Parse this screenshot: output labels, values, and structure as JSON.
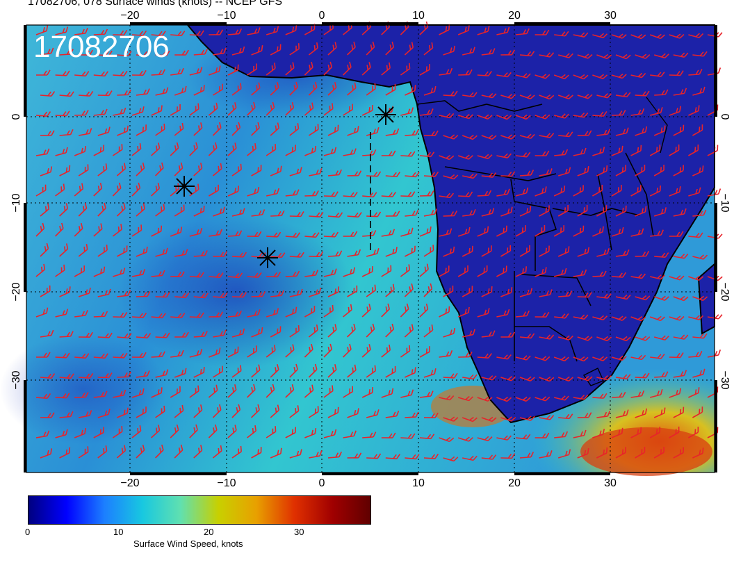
{
  "page": {
    "title": "17082706, 078 Surface winds (knots) -- NCEP GFS",
    "stamp": "17082706"
  },
  "map": {
    "lon_labels": [
      "−20",
      "−10",
      "0",
      "10",
      "20",
      "30"
    ],
    "lat_labels": [
      "0",
      "−10",
      "−20",
      "−30"
    ],
    "colors": {
      "ocean_dark": "#1c2fb0",
      "ocean_light": "#2ec8d8",
      "land": "#1a1fa0",
      "barb": "#e8232a",
      "frame": "#000000"
    }
  },
  "colorbar": {
    "label": "Surface Wind Speed, knots",
    "ticks": [
      "0",
      "10",
      "20",
      "30"
    ],
    "tick_values": [
      0,
      10,
      20,
      30
    ],
    "range": [
      0,
      38
    ],
    "stops": [
      "#00007f",
      "#0000ff",
      "#1c7fff",
      "#18c8e0",
      "#60e0b0",
      "#c8d000",
      "#e8a000",
      "#e03000",
      "#a00000",
      "#600000"
    ]
  }
}
